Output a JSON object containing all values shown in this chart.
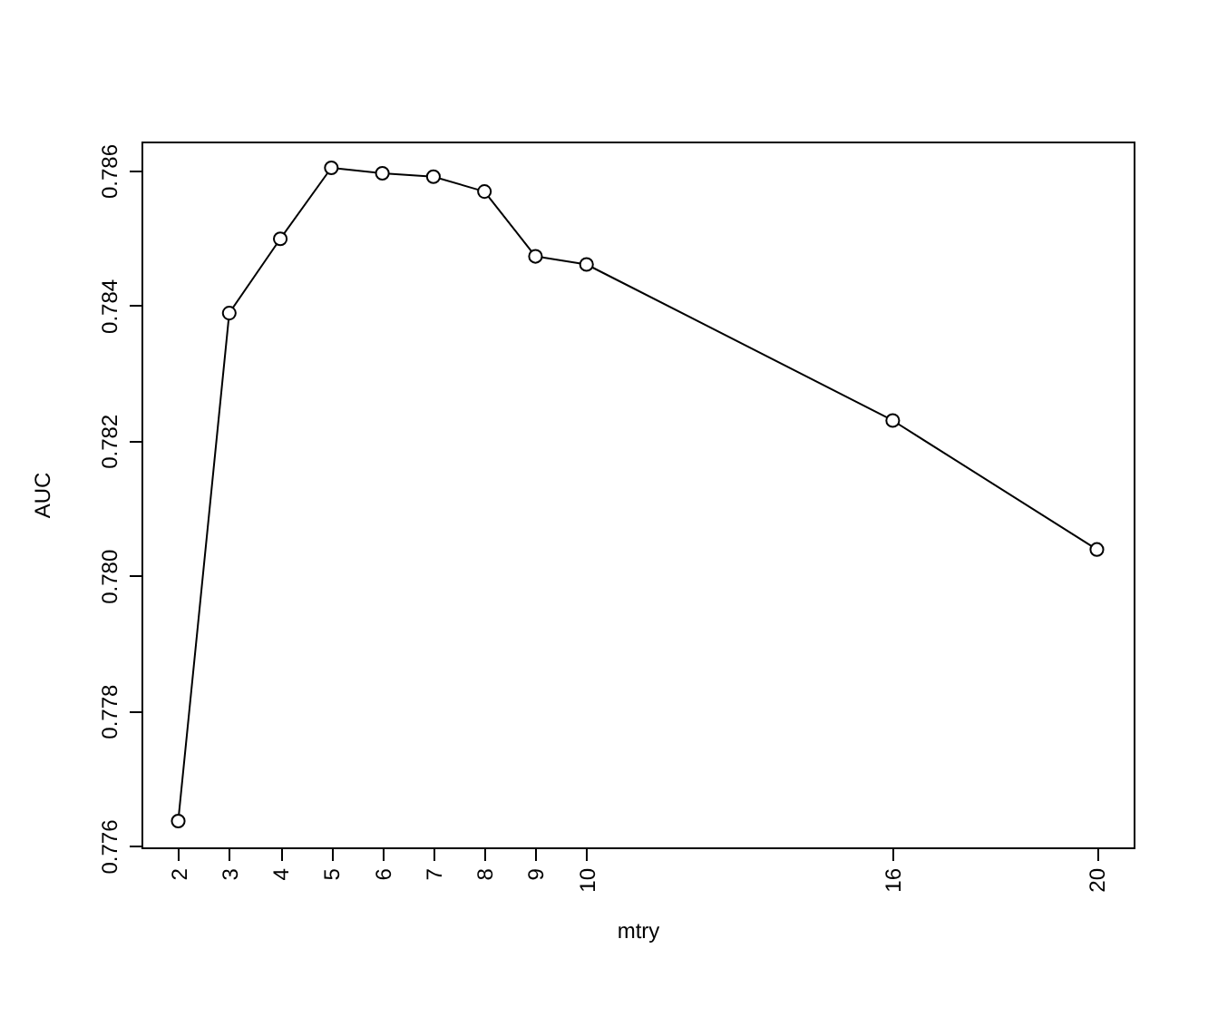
{
  "chart_data": {
    "type": "line",
    "xlabel": "mtry",
    "ylabel": "AUC",
    "x": [
      2,
      3,
      4,
      5,
      6,
      7,
      8,
      9,
      10,
      16,
      20
    ],
    "values": [
      0.77637,
      0.78389,
      0.78499,
      0.78604,
      0.78596,
      0.78591,
      0.78569,
      0.78473,
      0.78461,
      0.7823,
      0.78039
    ],
    "color": "#000000",
    "marker": "circle",
    "line_style": "solid",
    "grid": false,
    "xlim": [
      1.28,
      20.72
    ],
    "ylim": [
      0.77598,
      0.78643
    ],
    "xticks": [
      2,
      3,
      4,
      5,
      6,
      7,
      8,
      9,
      10,
      16,
      20
    ],
    "yticks": [
      0.776,
      0.778,
      {
        "value": 0.78,
        "label": "0.780"
      },
      0.782,
      0.784,
      0.786
    ]
  }
}
